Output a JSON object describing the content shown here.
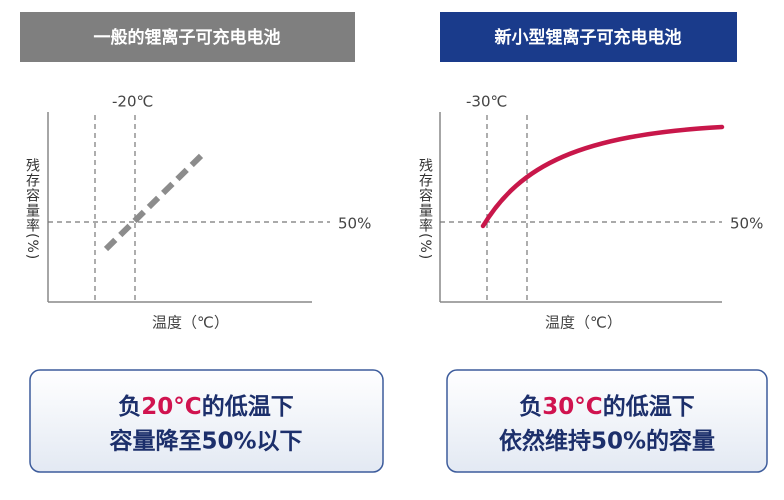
{
  "left": {
    "header": "一般的锂离子可充电电池",
    "temp_label": "-20℃",
    "level_label": "50%",
    "y_label": "残存容量率(%)",
    "x_label": "温度（℃）",
    "note": {
      "line1": [
        "负",
        "20°C",
        "的低温下"
      ],
      "line2": "容量降至50%以下"
    }
  },
  "right": {
    "header": "新小型锂离子可充电电池",
    "temp_label": "-30℃",
    "level_label": "50%",
    "y_label": "残存容量率(%)",
    "x_label": "温度（℃）",
    "note": {
      "line1": [
        "负",
        "30°C",
        "的低温下"
      ],
      "line2": "依然维持50%的容量"
    }
  }
}
